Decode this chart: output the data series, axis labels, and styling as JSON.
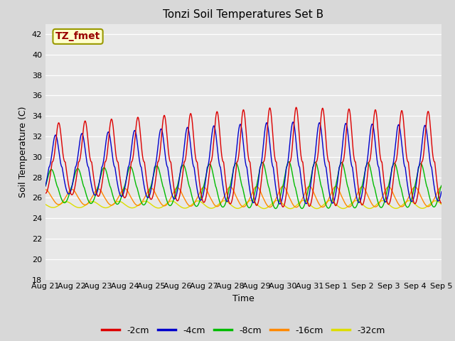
{
  "title": "Tonzi Soil Temperatures Set B",
  "xlabel": "Time",
  "ylabel": "Soil Temperature (C)",
  "ylim": [
    18,
    43
  ],
  "yticks": [
    18,
    20,
    22,
    24,
    26,
    28,
    30,
    32,
    34,
    36,
    38,
    40,
    42
  ],
  "xtick_labels": [
    "Aug 21",
    "Aug 22",
    "Aug 23",
    "Aug 24",
    "Aug 25",
    "Aug 26",
    "Aug 27",
    "Aug 28",
    "Aug 29",
    "Aug 30",
    "Aug 31",
    "Sep 1",
    "Sep 2",
    "Sep 3",
    "Sep 4",
    "Sep 5"
  ],
  "annotation_text": "TZ_fmet",
  "annotation_color": "#990000",
  "annotation_bg": "#ffffcc",
  "annotation_border": "#999900",
  "colors": {
    "-2cm": "#dd0000",
    "-4cm": "#0000cc",
    "-8cm": "#00bb00",
    "-16cm": "#ff8800",
    "-32cm": "#dddd00"
  },
  "legend_labels": [
    "-2cm",
    "-4cm",
    "-8cm",
    "-16cm",
    "-32cm"
  ],
  "background_color": "#d8d8d8",
  "plot_bg": "#e8e8e8",
  "n_days": 15,
  "samples_per_day": 144,
  "mean_2cm": 29.5,
  "mean_4cm": 29.0,
  "mean_8cm": 27.0,
  "mean_16cm": 26.0,
  "mean_32cm": 25.3,
  "base_amp_2cm": 8.5,
  "base_amp_4cm": 7.0,
  "base_amp_8cm": 4.0,
  "base_amp_16cm": 1.8,
  "base_amp_32cm": 0.7,
  "phase_4cm": 0.12,
  "phase_8cm": 0.28,
  "phase_16cm": 0.5,
  "phase_32cm": 0.72
}
